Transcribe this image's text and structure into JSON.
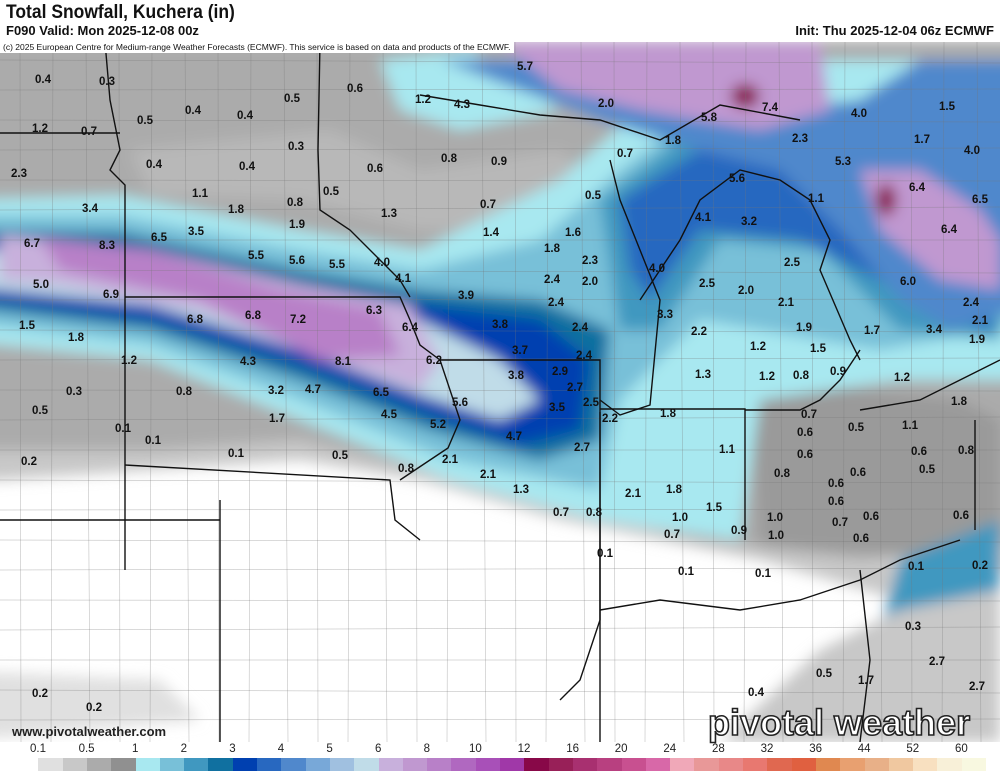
{
  "header": {
    "title": "Total Snowfall, Kuchera (in)",
    "valid": "F090 Valid: Mon 2025-12-08 00z",
    "init": "Init: Thu 2025-12-04 06z ECMWF",
    "copyright": "(c) 2025 European Centre for Medium-range Weather Forecasts (ECMWF). This service is based on data and products of the ECMWF."
  },
  "footer": {
    "website": "www.pivotalweather.com",
    "logo_text": "pivotal weather"
  },
  "legend": {
    "labels": [
      "0.1",
      "0.5",
      "1",
      "2",
      "3",
      "4",
      "5",
      "6",
      "8",
      "10",
      "12",
      "16",
      "20",
      "24",
      "28",
      "32",
      "36",
      "44",
      "52",
      "60"
    ],
    "colors": [
      "#ffffff",
      "#e0e0e0",
      "#c8c8c8",
      "#ababab",
      "#909090",
      "#a8e8f0",
      "#78c0d8",
      "#4098c0",
      "#1070a0",
      "#0040b0",
      "#2868c0",
      "#5088cc",
      "#78a8d8",
      "#a0c0e0",
      "#c0dce8",
      "#c8b0dc",
      "#c098d0",
      "#b880c8",
      "#b068c0",
      "#a850b8",
      "#a038a8",
      "#880848",
      "#982058",
      "#a83070",
      "#b84080",
      "#c85090",
      "#d868a8",
      "#f0a8b8",
      "#e89898",
      "#e88888",
      "#e87870",
      "#e06850",
      "#e06040",
      "#e08850",
      "#e8a070",
      "#e8b088",
      "#f0c8a0",
      "#f8e0c0",
      "#f8f0d8",
      "#f8f8e0"
    ]
  },
  "map": {
    "units": "in",
    "point_values": [
      "0.4",
      "0.3",
      "1.2",
      "0.7",
      "0.5",
      "0.4",
      "0.4",
      "0.5",
      "0.3",
      "0.4",
      "0.4",
      "2.3",
      "1.1",
      "0.6",
      "0.5",
      "0.8",
      "1.8",
      "1.9",
      "1.3",
      "3.4",
      "3.5",
      "6.7",
      "8.3",
      "6.5",
      "5.5",
      "5.6",
      "5.5",
      "4.0",
      "4.1",
      "5.0",
      "6.9",
      "3.9",
      "0.6",
      "1.2",
      "4.3",
      "0.8",
      "0.7",
      "1.4",
      "5.7",
      "2.0",
      "5.8",
      "7.4",
      "4.0",
      "1.5",
      "1.8",
      "2.3",
      "1.7",
      "4.0",
      "0.9",
      "0.7",
      "5.3",
      "5.6",
      "0.5",
      "1.1",
      "6.4",
      "6.5",
      "4.1",
      "3.2",
      "6.4",
      "1.6",
      "1.8",
      "2.3",
      "4.0",
      "2.5",
      "6.0",
      "2.4",
      "2.0",
      "2.5",
      "2.0",
      "1.5",
      "1.8",
      "1.2",
      "6.8",
      "6.8",
      "7.2",
      "6.3",
      "6.4",
      "4.3",
      "8.1",
      "6.2",
      "0.3",
      "0.8",
      "3.2",
      "4.7",
      "6.5",
      "5.6",
      "0.5",
      "1.7",
      "4.5",
      "5.2",
      "0.1",
      "0.1",
      "0.2",
      "0.1",
      "0.5",
      "0.8",
      "2.1",
      "2.1",
      "2.4",
      "2.1",
      "2.4",
      "3.8",
      "2.4",
      "3.3",
      "2.2",
      "1.9",
      "1.7",
      "3.4",
      "2.1",
      "1.9",
      "3.7",
      "2.4",
      "1.2",
      "1.5",
      "3.8",
      "2.9",
      "1.3",
      "1.2",
      "0.8",
      "0.9",
      "1.2",
      "2.7",
      "2.5",
      "3.5",
      "2.2",
      "1.8",
      "0.7",
      "1.8",
      "0.5",
      "1.1",
      "4.7",
      "0.6",
      "1.1",
      "0.6",
      "2.7",
      "0.6",
      "0.8",
      "0.5",
      "0.8",
      "0.6",
      "0.6",
      "2.1",
      "1.8",
      "1.3",
      "0.6",
      "1.5",
      "0.7",
      "0.8",
      "1.0",
      "1.0",
      "0.7",
      "0.6",
      "0.6",
      "0.7",
      "0.9",
      "1.0",
      "0.6",
      "0.1",
      "0.1",
      "0.1",
      "0.1",
      "0.2",
      "0.3",
      "2.7",
      "0.5",
      "1.7",
      "2.7",
      "0.4",
      "0.2",
      "0.2"
    ]
  }
}
